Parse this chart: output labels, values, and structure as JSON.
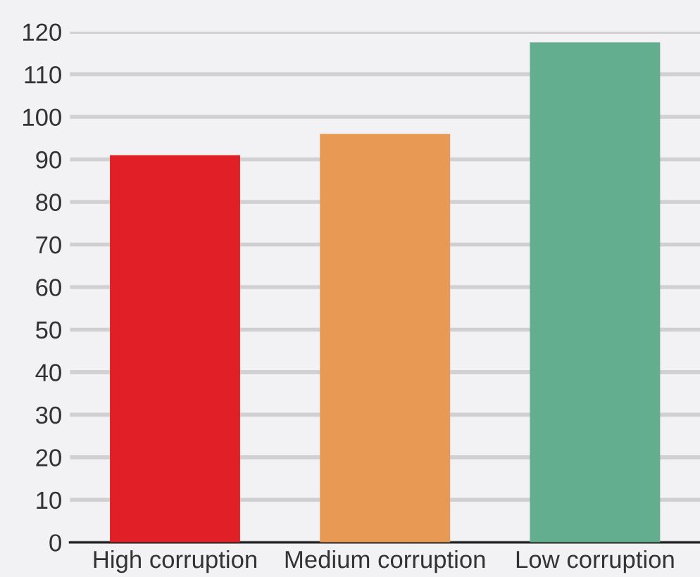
{
  "chart_data": {
    "type": "bar",
    "categories": [
      "High corruption",
      "Medium corruption",
      "Low corruption"
    ],
    "values": [
      91,
      96,
      117.5
    ],
    "colors": [
      "#e01f26",
      "#e89a54",
      "#63ae8f"
    ],
    "ylim": [
      0,
      120
    ],
    "yticks": [
      0,
      10,
      20,
      30,
      40,
      50,
      60,
      70,
      80,
      90,
      100,
      110,
      120
    ],
    "grid": "y"
  }
}
